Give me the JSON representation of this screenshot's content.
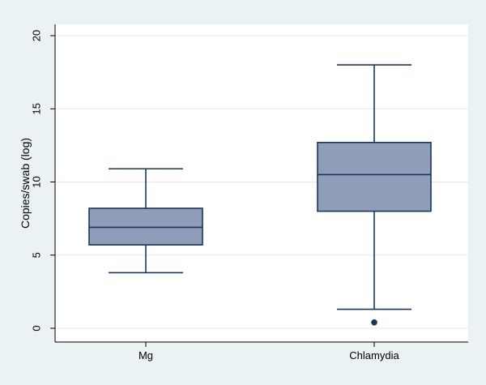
{
  "chart_data": {
    "type": "box",
    "title": "",
    "xlabel": "",
    "ylabel": "Copies/swab (log)",
    "ylim": [
      0,
      20
    ],
    "yticks": [
      "0",
      "5",
      "10",
      "15",
      "20"
    ],
    "grid": true,
    "categories": [
      "Mg",
      "Chlamydia"
    ],
    "boxes": [
      {
        "category": "Mg",
        "whisker_low": 3.8,
        "q1": 5.7,
        "median": 6.9,
        "q3": 8.2,
        "whisker_high": 10.9,
        "outliers": []
      },
      {
        "category": "Chlamydia",
        "whisker_low": 1.3,
        "q1": 8.0,
        "median": 10.5,
        "q3": 12.7,
        "whisker_high": 18.0,
        "outliers": [
          0.4
        ]
      }
    ],
    "colors": {
      "outer_background": "#eaf2f3",
      "plot_background": "#ffffff",
      "box_fill": "#8f9db9",
      "box_stroke": "#1a3560",
      "grid": "#e6ebef",
      "axis": "#000000"
    }
  }
}
